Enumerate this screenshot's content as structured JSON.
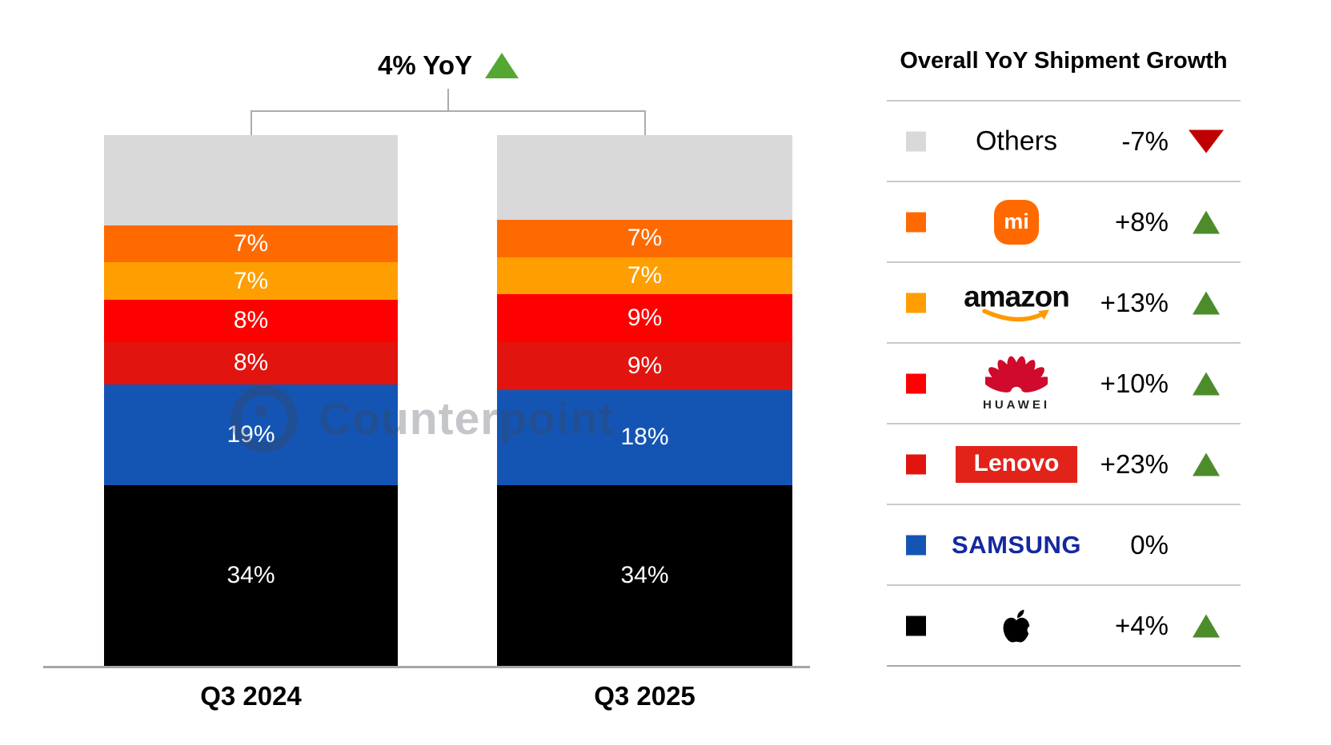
{
  "header": {
    "growth_label": "4% YoY",
    "direction": "up"
  },
  "watermark": {
    "text": "Counterpoint"
  },
  "legend": {
    "title": "Overall YoY Shipment Growth",
    "rows": [
      {
        "vendor": "Others",
        "swatch": "#D9D9D9",
        "logo": "text",
        "logo_text": "Others",
        "value": "-7%",
        "direction": "down"
      },
      {
        "vendor": "Xiaomi",
        "swatch": "#FF6A00",
        "logo": "xiaomi",
        "logo_text": "mi",
        "value": "+8%",
        "direction": "up"
      },
      {
        "vendor": "Amazon",
        "swatch": "#FF9E00",
        "logo": "amazon",
        "logo_text": "amazon",
        "value": "+13%",
        "direction": "up"
      },
      {
        "vendor": "Huawei",
        "swatch": "#FF0000",
        "logo": "huawei",
        "logo_text": "HUAWEI",
        "value": "+10%",
        "direction": "up"
      },
      {
        "vendor": "Lenovo",
        "swatch": "#E1140F",
        "logo": "lenovo",
        "logo_text": "Lenovo",
        "value": "+23%",
        "direction": "up"
      },
      {
        "vendor": "Samsung",
        "swatch": "#1455B4",
        "logo": "samsung",
        "logo_text": "SAMSUNG",
        "value": "0%",
        "direction": "none"
      },
      {
        "vendor": "Apple",
        "swatch": "#000000",
        "logo": "apple",
        "logo_text": "",
        "value": "+4%",
        "direction": "up"
      }
    ]
  },
  "colors": {
    "header_up_triangle": "#54A832",
    "legend_up_triangle": "#4C8C2B",
    "legend_down_triangle": "#C00000",
    "baseline": "#A6A6A6",
    "amazon_smile": "#FF9900",
    "huawei_flower": "#CF0A2C",
    "lenovo_box": "#E2231A",
    "samsung_wordmark": "#1428A0",
    "xiaomi_badge": "#FF6900"
  },
  "chart_data": {
    "type": "bar",
    "stacked": true,
    "unit": "%",
    "title": "4% YoY",
    "legend_position": "right",
    "ylim": [
      0,
      100
    ],
    "categories": [
      "Q3 2024",
      "Q3 2025"
    ],
    "series_order": "top-to-bottom",
    "series": [
      {
        "name": "Others",
        "color": "#D9D9D9",
        "values": [
          17,
          16
        ],
        "label_hidden": true
      },
      {
        "name": "Xiaomi",
        "color": "#FF6A00",
        "values": [
          7,
          7
        ]
      },
      {
        "name": "Amazon",
        "color": "#FF9E00",
        "values": [
          7,
          7
        ]
      },
      {
        "name": "Huawei",
        "color": "#FF0000",
        "values": [
          8,
          9
        ]
      },
      {
        "name": "Lenovo",
        "color": "#E1140F",
        "values": [
          8,
          9
        ]
      },
      {
        "name": "Samsung",
        "color": "#1455B4",
        "values": [
          19,
          18
        ]
      },
      {
        "name": "Apple",
        "color": "#000000",
        "values": [
          34,
          34
        ]
      }
    ],
    "legend_growth_values": {
      "Others": -7,
      "Xiaomi": 8,
      "Amazon": 13,
      "Huawei": 10,
      "Lenovo": 23,
      "Samsung": 0,
      "Apple": 4,
      "Overall": 4
    }
  }
}
